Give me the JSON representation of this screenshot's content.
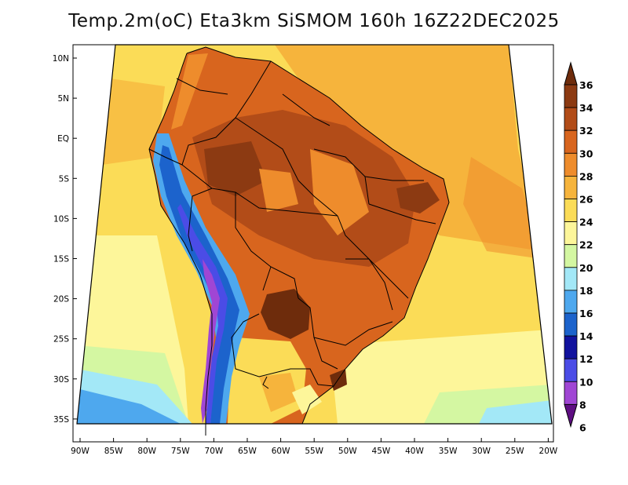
{
  "title": "Temp.2m(oC) Eta3km SiSMOM 160h 16Z22DEC2025",
  "lat_ticks": [
    "10N",
    "5N",
    "EQ",
    "5S",
    "10S",
    "15S",
    "20S",
    "25S",
    "30S",
    "35S"
  ],
  "lon_ticks": [
    "90W",
    "85W",
    "80W",
    "75W",
    "70W",
    "65W",
    "60W",
    "55W",
    "50W",
    "45W",
    "40W",
    "35W",
    "30W",
    "25W",
    "20W"
  ],
  "colorbar": {
    "labels": [
      "36",
      "34",
      "32",
      "30",
      "28",
      "26",
      "24",
      "22",
      "20",
      "18",
      "16",
      "14",
      "12",
      "10",
      "8",
      "6"
    ],
    "colors": [
      "#6e2c0c",
      "#8c3a12",
      "#b24c18",
      "#d8651e",
      "#ee8c2c",
      "#f6b43c",
      "#fbdc57",
      "#fdf69a",
      "#d4f7a2",
      "#a3e8f7",
      "#4ea8ee",
      "#1c63cc",
      "#11129e",
      "#4b4ce6",
      "#a046d4",
      "#5e0e82"
    ]
  }
}
